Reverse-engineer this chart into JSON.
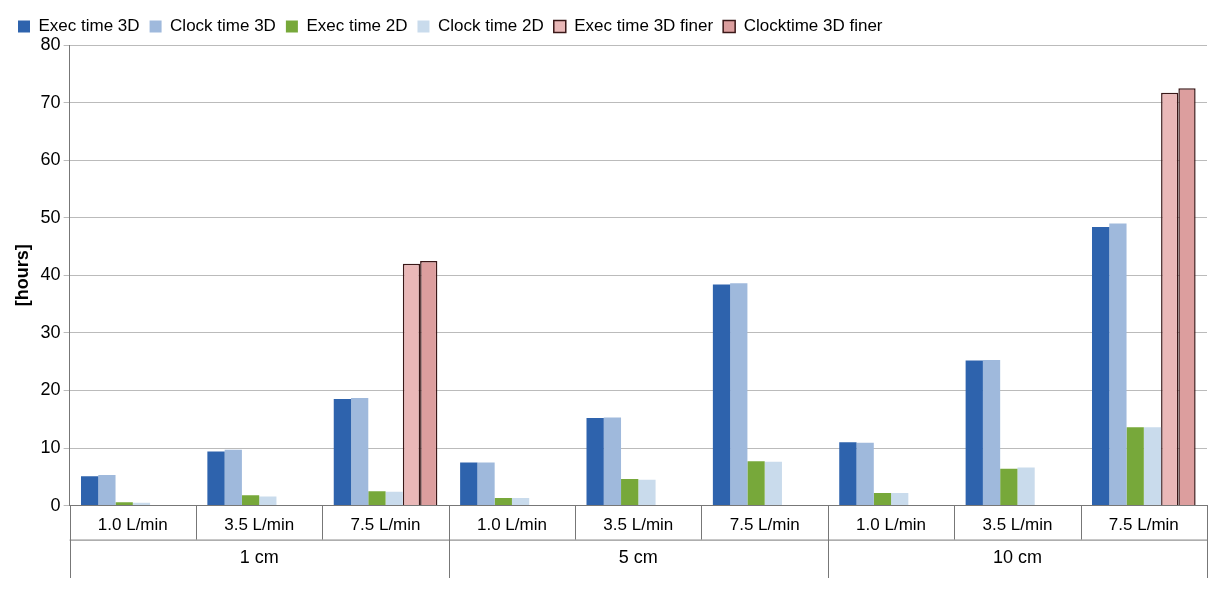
{
  "chart_data": {
    "type": "bar",
    "ylabel": "[hours]",
    "categories": [
      "1.0 L/min",
      "3.5 L/min",
      "7.5 L/min",
      "1.0 L/min",
      "3.5 L/min",
      "7.5 L/min",
      "1.0 L/min",
      "3.5 L/min",
      "7.5 L/min"
    ],
    "annotations": [
      "1 cm",
      "5 cm",
      "10 cm"
    ],
    "series": [
      {
        "name": "Exec time 3D",
        "color": "#2e63ad",
        "values": [
          5.1,
          9.4,
          18.5,
          7.5,
          15.2,
          38.4,
          11.0,
          25.2,
          48.4
        ]
      },
      {
        "name": "Clock time 3D",
        "color": "#9fb9dc",
        "values": [
          5.3,
          9.7,
          18.7,
          7.5,
          15.3,
          38.6,
          10.9,
          25.3,
          49.0
        ]
      },
      {
        "name": "Exec time 2D",
        "color": "#77a83a",
        "values": [
          0.6,
          1.8,
          2.5,
          1.3,
          4.6,
          7.7,
          2.2,
          6.4,
          13.6
        ]
      },
      {
        "name": "Clock time 2D",
        "color": "#c9dbec",
        "values": [
          0.5,
          1.6,
          2.4,
          1.3,
          4.5,
          7.6,
          2.2,
          6.6,
          13.6
        ]
      },
      {
        "name": "Exec time 3D finer",
        "color": "#eab8b8",
        "values": [
          null,
          null,
          42.0,
          null,
          null,
          null,
          null,
          null,
          71.7
        ]
      },
      {
        "name": "Clocktime 3D finer",
        "color": "#dc9e9e",
        "values": [
          null,
          null,
          42.5,
          null,
          null,
          null,
          null,
          null,
          72.5
        ]
      }
    ],
    "ylim": [
      0,
      80
    ],
    "yticks": [
      0,
      10,
      20,
      30,
      40,
      50,
      60,
      70,
      80
    ],
    "grid": "y",
    "legend": "top"
  }
}
